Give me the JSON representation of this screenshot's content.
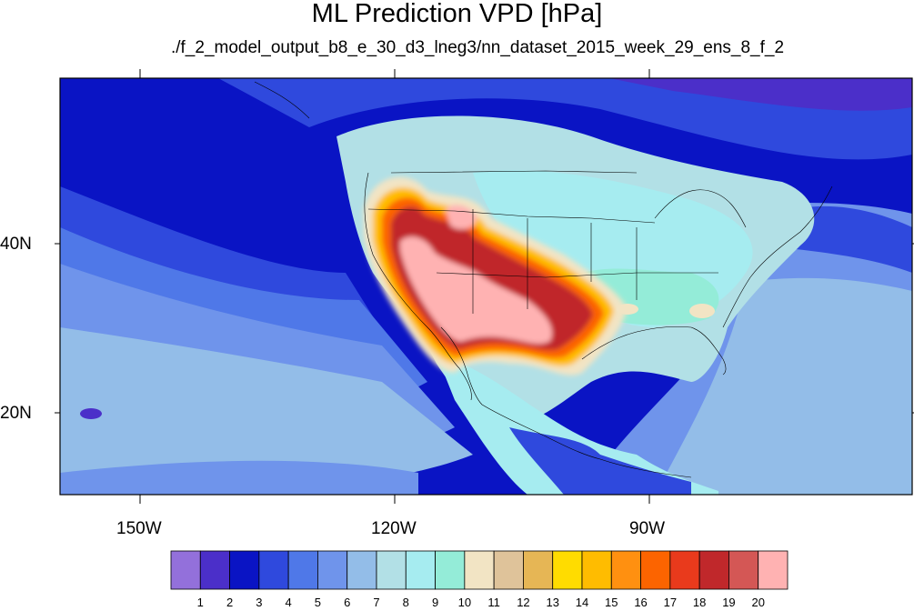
{
  "title": "ML Prediction VPD [hPa]",
  "subtitle": "./f_2_model_output_b8_e_30_d3_lneg3/nn_dataset_2015_week_29_ens_8_f_2",
  "x_axis": {
    "ticks": [
      "150W",
      "120W",
      "90W"
    ]
  },
  "y_axis": {
    "ticks": [
      "40N",
      "20N"
    ]
  },
  "colorbar": {
    "labels": [
      "1",
      "2",
      "3",
      "4",
      "5",
      "6",
      "7",
      "8",
      "9",
      "10",
      "11",
      "12",
      "13",
      "14",
      "15",
      "16",
      "17",
      "18",
      "19",
      "20"
    ],
    "colors": [
      "#9370db",
      "#4b2fc9",
      "#0a14c4",
      "#2f49dd",
      "#4f78e8",
      "#6f94eb",
      "#93bde8",
      "#b2e0e6",
      "#a6ecf0",
      "#94ecd8",
      "#f2e4c4",
      "#dfc39a",
      "#e6b655",
      "#ffdc00",
      "#ffbc00",
      "#ff9010",
      "#fc6400",
      "#e93a1c",
      "#c0282b",
      "#d45755",
      "#ffb2b2"
    ]
  },
  "map_colors": {
    "ocean_deep": "#0a14c4",
    "ocean_mid": "#2f49dd",
    "ocean_light": "#4f78e8",
    "ocean_pale": "#6f94eb",
    "sky": "#93bde8",
    "pale_cyan": "#b2e0e6",
    "aqua": "#a6ecf0",
    "mint": "#94ecd8",
    "tan": "#f2e4c4",
    "orange": "#ffbc00",
    "dark_orange": "#fc6400",
    "red": "#c0282b",
    "pink": "#ffb2b2"
  }
}
